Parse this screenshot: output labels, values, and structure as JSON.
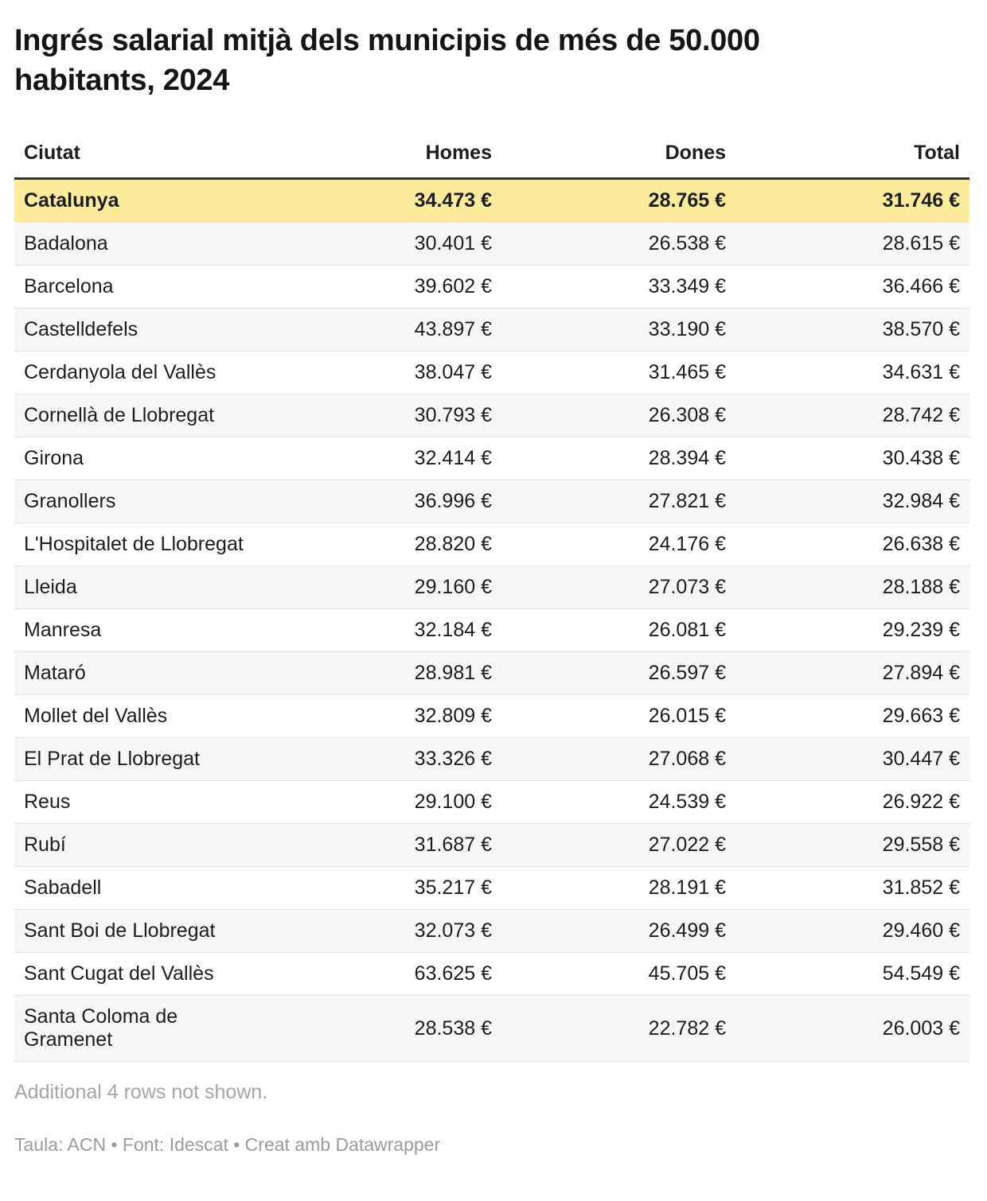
{
  "chart_data": {
    "type": "table",
    "title": "Ingrés salarial mitjà dels municipis de més de 50.000 habitants, 2024",
    "columns": [
      "Ciutat",
      "Homes",
      "Dones",
      "Total"
    ],
    "rows": [
      {
        "ciutat": "Catalunya",
        "homes": "34.473 €",
        "dones": "28.765 €",
        "total": "31.746 €",
        "highlight": true
      },
      {
        "ciutat": "Badalona",
        "homes": "30.401 €",
        "dones": "26.538 €",
        "total": "28.615 €",
        "highlight": false
      },
      {
        "ciutat": "Barcelona",
        "homes": "39.602 €",
        "dones": "33.349 €",
        "total": "36.466 €",
        "highlight": false
      },
      {
        "ciutat": "Castelldefels",
        "homes": "43.897 €",
        "dones": "33.190 €",
        "total": "38.570 €",
        "highlight": false
      },
      {
        "ciutat": "Cerdanyola del Vallès",
        "homes": "38.047 €",
        "dones": "31.465 €",
        "total": "34.631 €",
        "highlight": false
      },
      {
        "ciutat": "Cornellà de Llobregat",
        "homes": "30.793 €",
        "dones": "26.308 €",
        "total": "28.742 €",
        "highlight": false
      },
      {
        "ciutat": "Girona",
        "homes": "32.414 €",
        "dones": "28.394 €",
        "total": "30.438 €",
        "highlight": false
      },
      {
        "ciutat": "Granollers",
        "homes": "36.996 €",
        "dones": "27.821 €",
        "total": "32.984 €",
        "highlight": false
      },
      {
        "ciutat": "L'Hospitalet de Llobregat",
        "homes": "28.820 €",
        "dones": "24.176 €",
        "total": "26.638 €",
        "highlight": false
      },
      {
        "ciutat": "Lleida",
        "homes": "29.160 €",
        "dones": "27.073 €",
        "total": "28.188 €",
        "highlight": false
      },
      {
        "ciutat": "Manresa",
        "homes": "32.184 €",
        "dones": "26.081 €",
        "total": "29.239 €",
        "highlight": false
      },
      {
        "ciutat": "Mataró",
        "homes": "28.981 €",
        "dones": "26.597 €",
        "total": "27.894 €",
        "highlight": false
      },
      {
        "ciutat": "Mollet del Vallès",
        "homes": "32.809 €",
        "dones": "26.015 €",
        "total": "29.663 €",
        "highlight": false
      },
      {
        "ciutat": "El Prat de Llobregat",
        "homes": "33.326 €",
        "dones": "27.068 €",
        "total": "30.447 €",
        "highlight": false
      },
      {
        "ciutat": "Reus",
        "homes": "29.100 €",
        "dones": "24.539 €",
        "total": "26.922 €",
        "highlight": false
      },
      {
        "ciutat": "Rubí",
        "homes": "31.687 €",
        "dones": "27.022 €",
        "total": "29.558 €",
        "highlight": false
      },
      {
        "ciutat": "Sabadell",
        "homes": "35.217 €",
        "dones": "28.191 €",
        "total": "31.852 €",
        "highlight": false
      },
      {
        "ciutat": "Sant Boi de Llobregat",
        "homes": "32.073 €",
        "dones": "26.499 €",
        "total": "29.460 €",
        "highlight": false
      },
      {
        "ciutat": "Sant Cugat del Vallès",
        "homes": "63.625 €",
        "dones": "45.705 €",
        "total": "54.549 €",
        "highlight": false
      },
      {
        "ciutat": "Santa Coloma de Gramenet",
        "homes": "28.538 €",
        "dones": "22.782 €",
        "total": "26.003 €",
        "highlight": false
      }
    ],
    "note": "Additional 4 rows not shown.",
    "footer": "Taula: ACN • Font: Idescat • Creat amb Datawrapper",
    "layout_hints": {
      "highlight_row_color": "#fceb9a",
      "stripe_row_color": "#f6f6f6",
      "header_border_color": "#333333",
      "row_border_color": "#e3e3e3",
      "note_color": "#a5a5a5",
      "footer_color": "#9b9b9b",
      "title_color": "#151515",
      "text_color": "#1d1d1d"
    }
  }
}
